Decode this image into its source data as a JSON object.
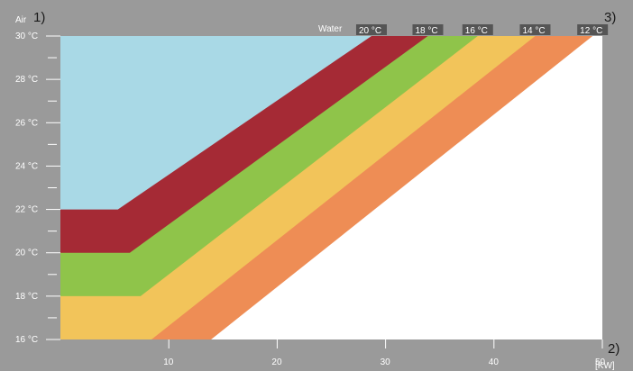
{
  "chart_data": {
    "type": "area",
    "xlabel": "[KW]",
    "ylabel": "Air",
    "xlim": [
      0,
      50
    ],
    "ylim": [
      16,
      30
    ],
    "x_ticks": [
      "10",
      "20",
      "30",
      "40",
      "50"
    ],
    "y_ticks": [
      "16 °C",
      "18 °C",
      "20 °C",
      "22 °C",
      "24 °C",
      "26 °C",
      "28 °C",
      "30 °C"
    ],
    "corner_labels": [
      "1)",
      "2)",
      "3)"
    ],
    "water_title": "Water",
    "series": [
      {
        "name": "20 °C",
        "points": [
          [
            0,
            22
          ],
          [
            5.3,
            22
          ],
          [
            28.7,
            30
          ]
        ]
      },
      {
        "name": "18 °C",
        "points": [
          [
            0,
            20
          ],
          [
            6.4,
            20
          ],
          [
            33.9,
            30
          ]
        ]
      },
      {
        "name": "16 °C",
        "points": [
          [
            0,
            18
          ],
          [
            7.4,
            18
          ],
          [
            38.5,
            30
          ]
        ]
      },
      {
        "name": "14 °C",
        "points": [
          [
            8.4,
            16
          ],
          [
            43.8,
            30
          ]
        ]
      },
      {
        "name": "12 °C",
        "points": [
          [
            13.9,
            16
          ],
          [
            49.1,
            30
          ]
        ]
      }
    ],
    "colors": {
      "frame": "#9a9a9a",
      "below_20": "#a9d9e6",
      "band_20_18": "#a52a35",
      "band_18_16": "#8fc44a",
      "band_16_14": "#f2c45a",
      "band_14_12": "#ee8d55",
      "beyond_12": "#ffffff",
      "water_tag": "#555555"
    }
  }
}
